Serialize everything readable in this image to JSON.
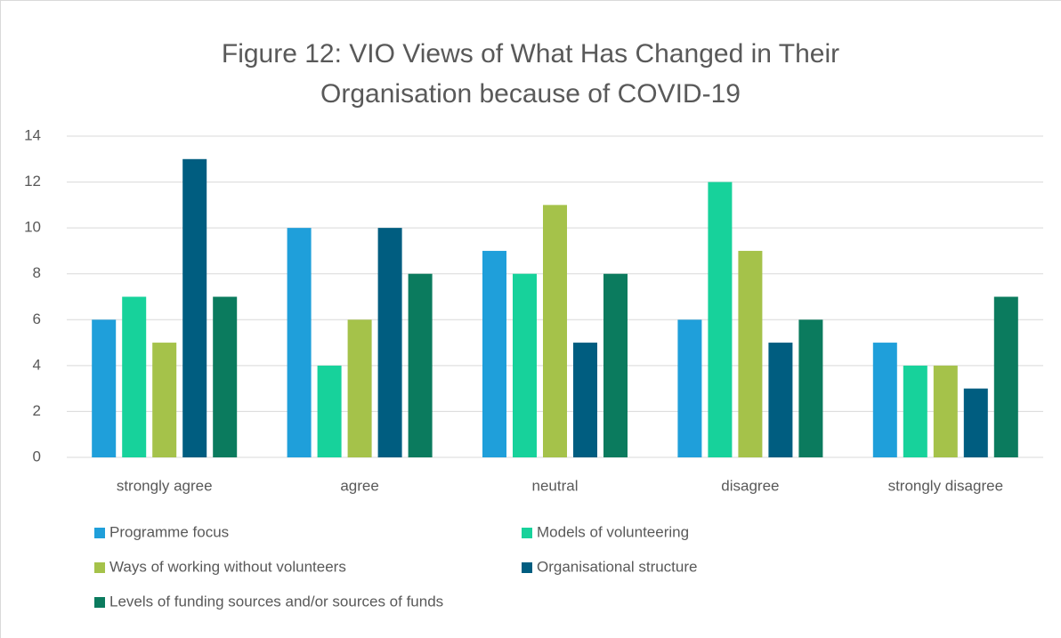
{
  "chart_data": {
    "type": "bar",
    "title": "Figure 12: VIO Views of What Has Changed in Their Organisation because of COVID-19",
    "categories": [
      "strongly agree",
      "agree",
      "neutral",
      "disagree",
      "strongly disagree"
    ],
    "series": [
      {
        "name": "Programme focus",
        "color": "#1f9fda",
        "values": [
          6,
          10,
          9,
          6,
          5
        ]
      },
      {
        "name": "Models of volunteering",
        "color": "#17d29b",
        "values": [
          7,
          4,
          8,
          12,
          4
        ]
      },
      {
        "name": "Ways of working without volunteers",
        "color": "#a5c24a",
        "values": [
          5,
          6,
          11,
          9,
          4
        ]
      },
      {
        "name": "Organisational structure",
        "color": "#005d80",
        "values": [
          13,
          10,
          5,
          5,
          3
        ]
      },
      {
        "name": "Levels of funding sources and/or sources of funds",
        "color": "#0b7b5e",
        "values": [
          7,
          8,
          8,
          6,
          7
        ]
      }
    ],
    "ylim": [
      0,
      14
    ],
    "yticks": [
      0,
      2,
      4,
      6,
      8,
      10,
      12,
      14
    ],
    "grid": true,
    "legend": "bottom"
  }
}
